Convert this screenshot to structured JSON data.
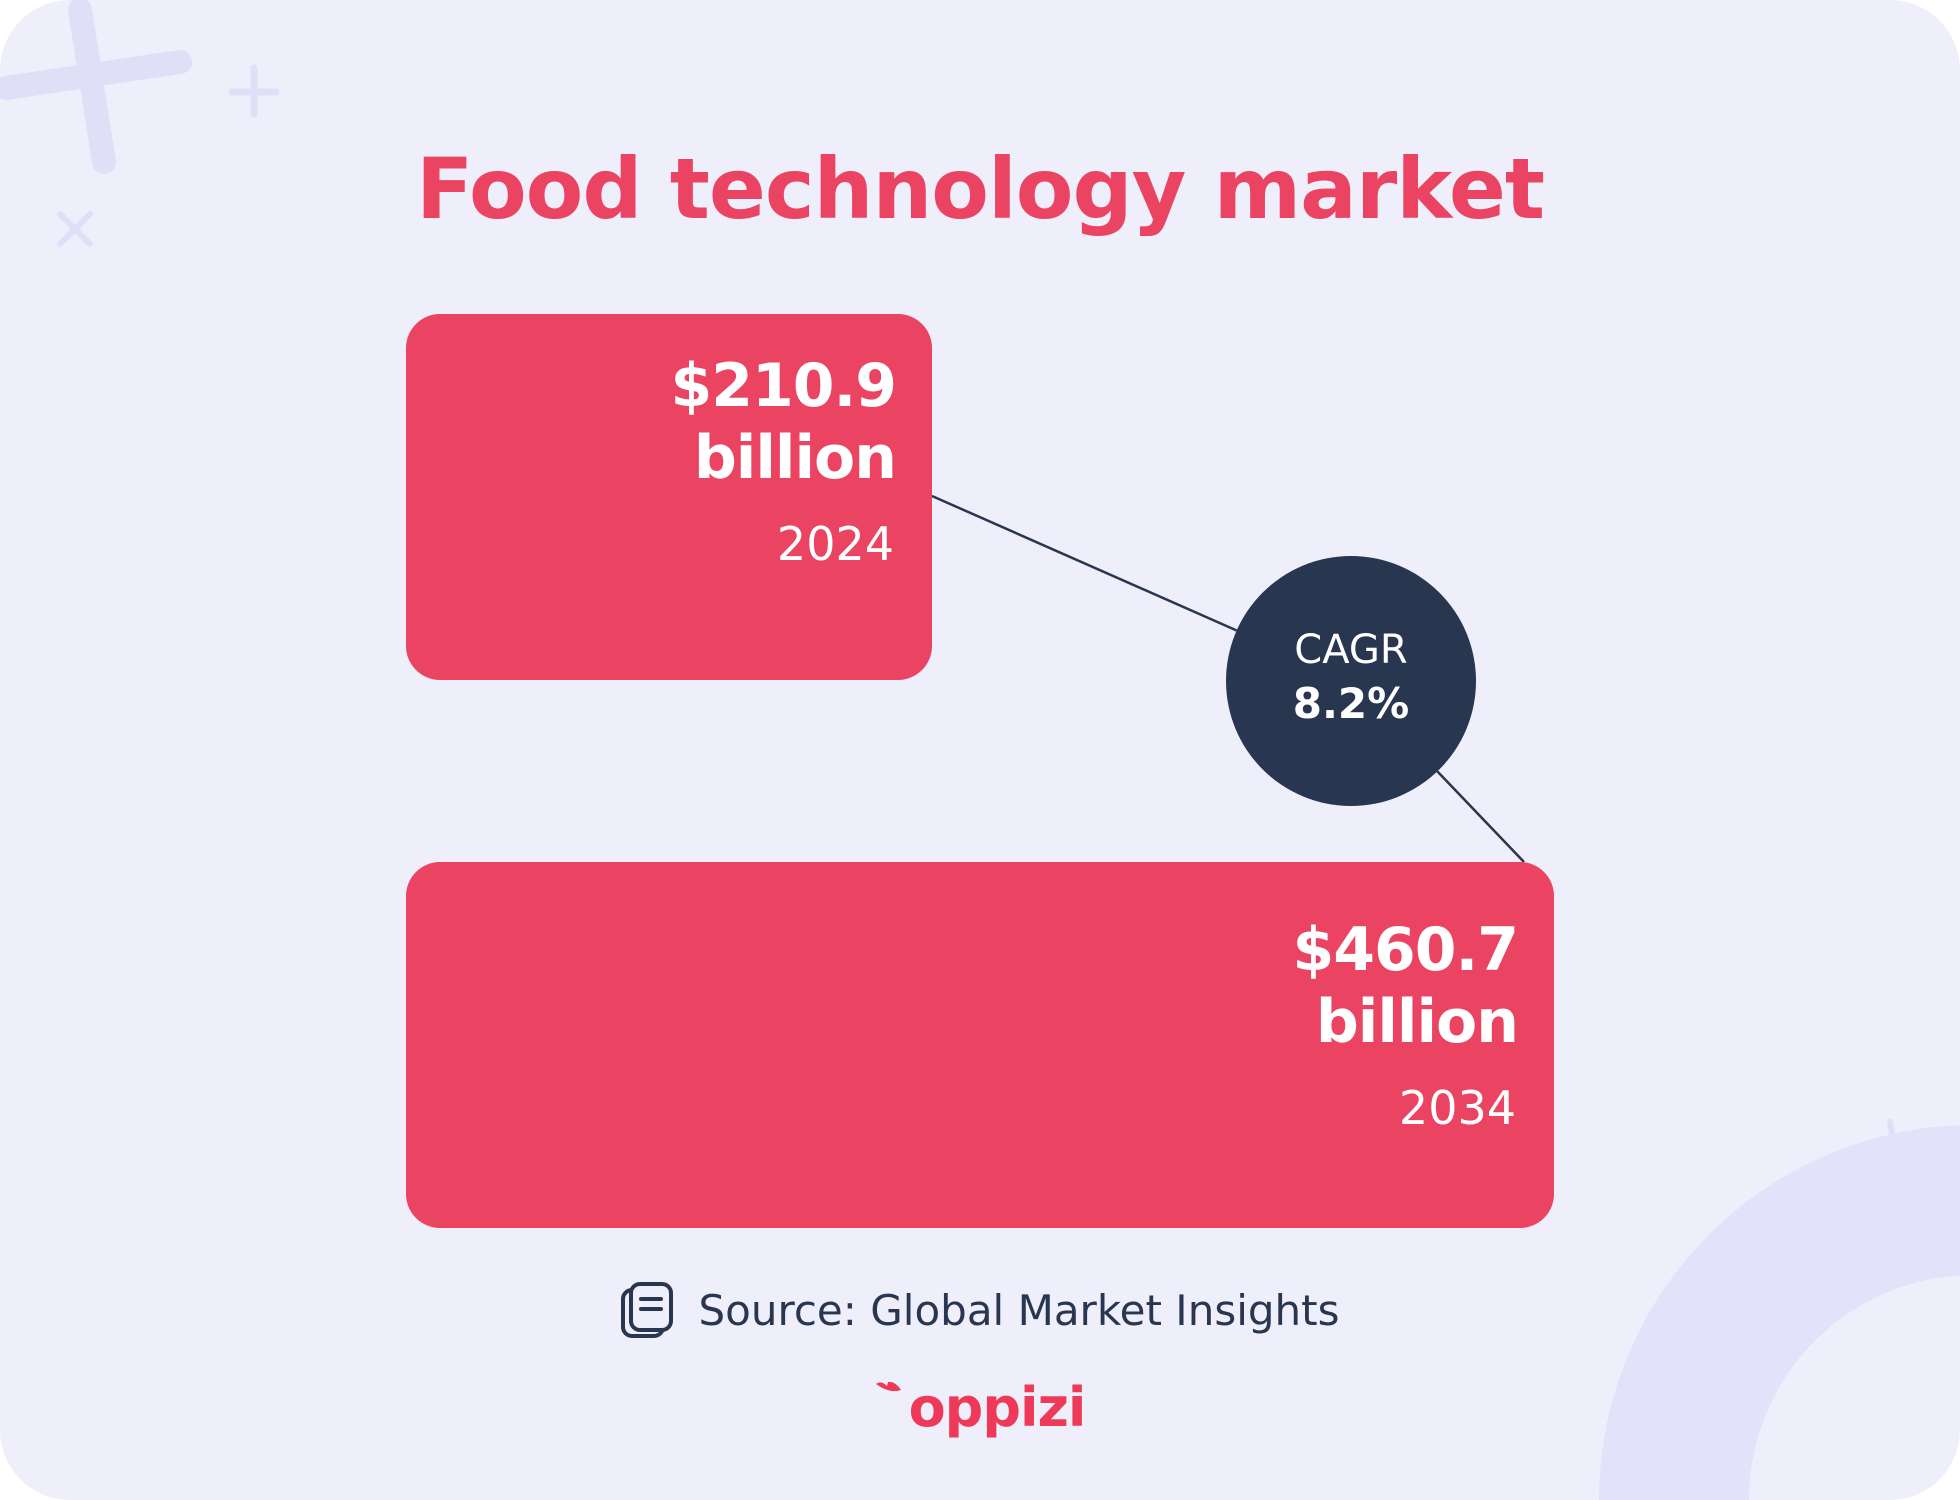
{
  "title": "Food technology market",
  "chart_data": {
    "type": "bar",
    "orientation": "horizontal",
    "title": "Food technology market",
    "categories": [
      "2024",
      "2034"
    ],
    "values": [
      210.9,
      460.7
    ],
    "value_labels": [
      "$210.9 billion",
      "$460.7 billion"
    ],
    "value_lines": [
      [
        "$210.9",
        "billion"
      ],
      [
        "$460.7",
        "billion"
      ]
    ],
    "unit": "billion USD",
    "xlim": [
      0,
      460.7
    ],
    "grid": false,
    "legend": "none",
    "annotation": {
      "label": "CAGR",
      "value": "8.2%"
    }
  },
  "cagr": {
    "label": "CAGR",
    "value": "8.2%"
  },
  "source": {
    "text": "Source: Global Market Insights",
    "icon": "document-icon"
  },
  "brand": {
    "name": "oppizi"
  },
  "colors": {
    "background": "#efeffb",
    "bar": "#ea4462",
    "title": "#ea4462",
    "circle": "#283650",
    "text_dark": "#283650",
    "decoration": "#dfdff8"
  }
}
